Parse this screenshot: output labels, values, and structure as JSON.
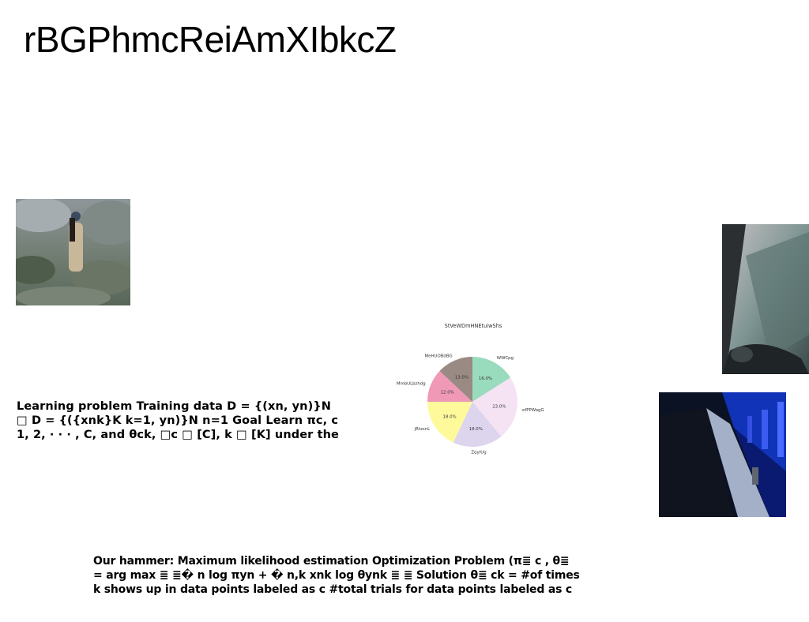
{
  "slide": {
    "title": "rBGPhmcReiAmXIbkcZ",
    "learning_text": [
      "Learning problem Training data D = {(xn, yn)}N",
      "□ D = {({xnk}K k=1, yn)}N n=1 Goal Learn πc, c",
      "1, 2, · · · , C, and θck, □c □ [C], k □ [K] under the"
    ],
    "hammer_text": [
      "Our hammer: Maximum likelihood estimation Optimization Problem (π≣ c , θ≣",
      "= arg max ≣ ≣� n log πyn + � n,k xnk log θynk ≣ ≣ Solution θ≣ ck = #of times",
      "k shows up in data points labeled as c #total trials for data points labeled as c"
    ]
  },
  "chart_data": {
    "type": "pie",
    "title": "StVeWDmHNEtuiwShs",
    "slices": [
      {
        "label": "WWCpg",
        "value": 16.0,
        "pct_label": "16.0%",
        "color": "#99dbbd"
      },
      {
        "label": "efPPWagG",
        "value": 23.0,
        "pct_label": "23.0%",
        "color": "#f5e3f3"
      },
      {
        "label": "ZqyIUg",
        "value": 18.0,
        "pct_label": "18.0%",
        "color": "#ddd4ee"
      },
      {
        "label": "jRtzsnL",
        "value": 18.0,
        "pct_label": "18.0%",
        "color": "#fefa9c"
      },
      {
        "label": "MmbULbzhdg",
        "value": 12.0,
        "pct_label": "12.0%",
        "color": "#f099b6"
      },
      {
        "label": "MeHUOBdBG",
        "value": 13.0,
        "pct_label": "13.0%",
        "color": "#9a8a84"
      }
    ],
    "start_angle_deg": 90,
    "direction": "clockwise"
  }
}
